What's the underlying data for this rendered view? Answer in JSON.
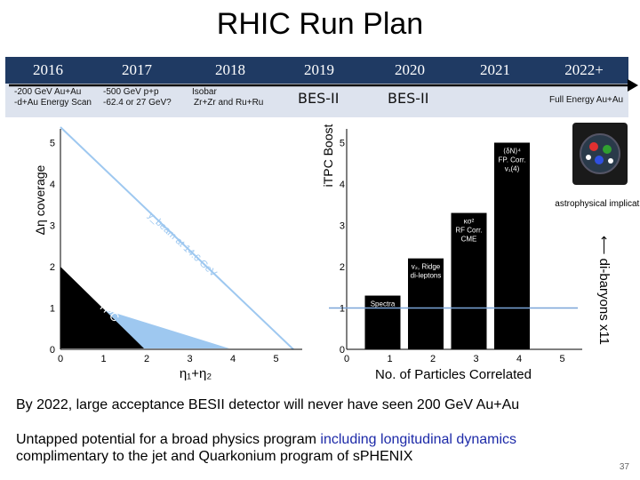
{
  "title": "RHIC Run Plan",
  "timeline": {
    "years": [
      "2016",
      "2017",
      "2018",
      "2019",
      "2020",
      "2021",
      "2022+"
    ],
    "details": {
      "y2016": [
        "-200 GeV Au+Au",
        "-d+Au Energy Scan"
      ],
      "y2017": [
        "-500 GeV p+p",
        "-62.4 or 27 GeV?"
      ],
      "y2018": [
        "Isobar",
        "Zr+Zr and Ru+Ru"
      ],
      "y2019": "BES-II",
      "y2020": "BES-II",
      "y2022": "Full Energy Au+Au"
    }
  },
  "left_plot": {
    "ylabel": "Δη coverage",
    "xlabel": "η₁+η₂",
    "xticks": [
      "0",
      "1",
      "2",
      "3",
      "4",
      "5"
    ],
    "yticks": [
      "0",
      "1",
      "2",
      "3",
      "4",
      "5"
    ],
    "labels": {
      "tpc": "TPC",
      "itpc": "iTPC",
      "ybeam": "y_beam at 14.6 GeV"
    }
  },
  "right_plot": {
    "ylabel": "iTPC Boost",
    "xlabel": "No. of Particles Correlated",
    "xticks": [
      "0",
      "1",
      "2",
      "3",
      "4",
      "5"
    ],
    "yticks": [
      "0",
      "1",
      "2",
      "3",
      "4",
      "5"
    ],
    "bars": [
      {
        "x": 1,
        "value": 1.3,
        "label": [
          "Spectra"
        ]
      },
      {
        "x": 2,
        "value": 2.2,
        "label": [
          "v₂, Ridge",
          "di-leptons"
        ]
      },
      {
        "x": 3,
        "value": 3.3,
        "label": [
          "κσ²",
          "RF Corr.",
          "CME"
        ]
      },
      {
        "x": 4,
        "value": 5.0,
        "label": [
          "⟨δN⟩⁴",
          "FP. Corr.",
          "v₁(4)"
        ]
      }
    ],
    "baseline": 1,
    "side_text": "astrophysical implications",
    "vertical_text": "⟵ di-baryons x11"
  },
  "body_text": {
    "line1": "By 2022, large acceptance BESII detector will never have seen 200 GeV Au+Au",
    "line2a": "Untapped potential for a broad physics program ",
    "line2b": "including longitudinal dynamics",
    "line3": "complimentary to the jet and Quarkonium program of sPHENIX"
  },
  "page_number": "37",
  "colors": {
    "header": "#1f3a63",
    "detail": "#dde3ee",
    "itpc_band": "#9ec8f0",
    "highlight": "#1d2aa8"
  }
}
